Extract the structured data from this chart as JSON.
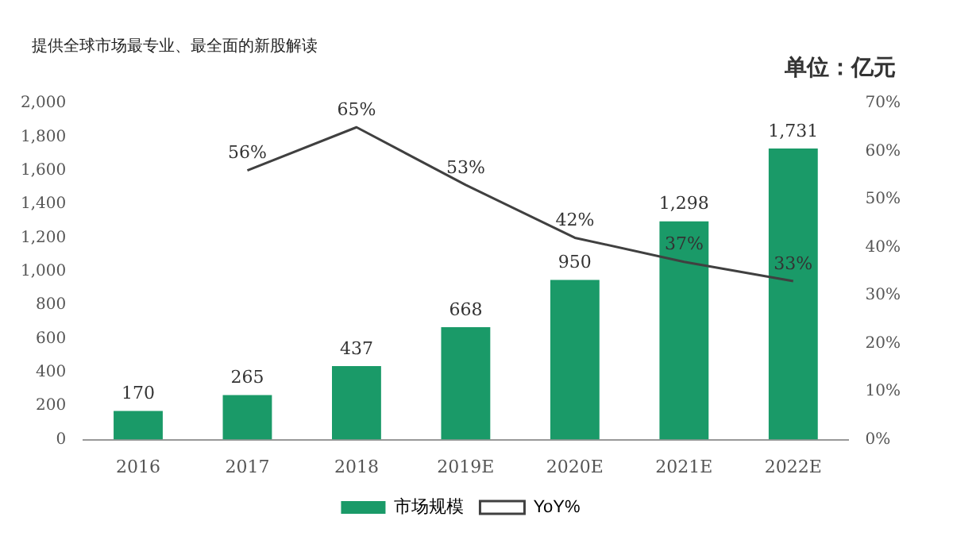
{
  "chart_data": {
    "type": "bar",
    "subtitle": "提供全球市场最专业、最全面的新股解读",
    "annotations": [
      "单位：亿元"
    ],
    "categories": [
      "2016",
      "2017",
      "2018",
      "2019E",
      "2020E",
      "2021E",
      "2022E"
    ],
    "series": [
      {
        "name": "市场规模",
        "color": "#1a9a68",
        "values": [
          170,
          265,
          437,
          668,
          950,
          1298,
          1731
        ],
        "value_labels": [
          "170",
          "265",
          "437",
          "668",
          "950",
          "1,298",
          "1,731"
        ]
      },
      {
        "name": "YoY%",
        "type": "line",
        "axis": "y2",
        "color": "#404040",
        "values": [
          null,
          56,
          65,
          53,
          42,
          37,
          33
        ],
        "value_labels": [
          null,
          "56%",
          "65%",
          "53%",
          "42%",
          "37%",
          "33%"
        ]
      }
    ],
    "ylim": [
      0,
      2000
    ],
    "yticks": [
      0,
      {
        "value": 200,
        "label": "200"
      },
      {
        "value": 400,
        "label": "400"
      },
      {
        "value": 600,
        "label": "600"
      },
      {
        "value": 800,
        "label": "800"
      },
      {
        "value": 1000,
        "label": "1,000"
      },
      {
        "value": 1200,
        "label": "1,200"
      },
      {
        "value": 1400,
        "label": "1,400"
      },
      {
        "value": 1600,
        "label": "1,600"
      },
      {
        "value": 1800,
        "label": "1,800"
      },
      {
        "value": 2000,
        "label": "2,000"
      }
    ],
    "y2lim": [
      0,
      70
    ],
    "y2ticks": [
      {
        "value": 0,
        "label": "0%"
      },
      {
        "value": 10,
        "label": "10%"
      },
      {
        "value": 20,
        "label": "20%"
      },
      {
        "value": 30,
        "label": "30%"
      },
      {
        "value": 40,
        "label": "40%"
      },
      {
        "value": 50,
        "label": "50%"
      },
      {
        "value": 60,
        "label": "60%"
      },
      {
        "value": 70,
        "label": "70%"
      }
    ],
    "grid": false,
    "legend": "bottom",
    "marker": "none",
    "line_style": "solid"
  }
}
